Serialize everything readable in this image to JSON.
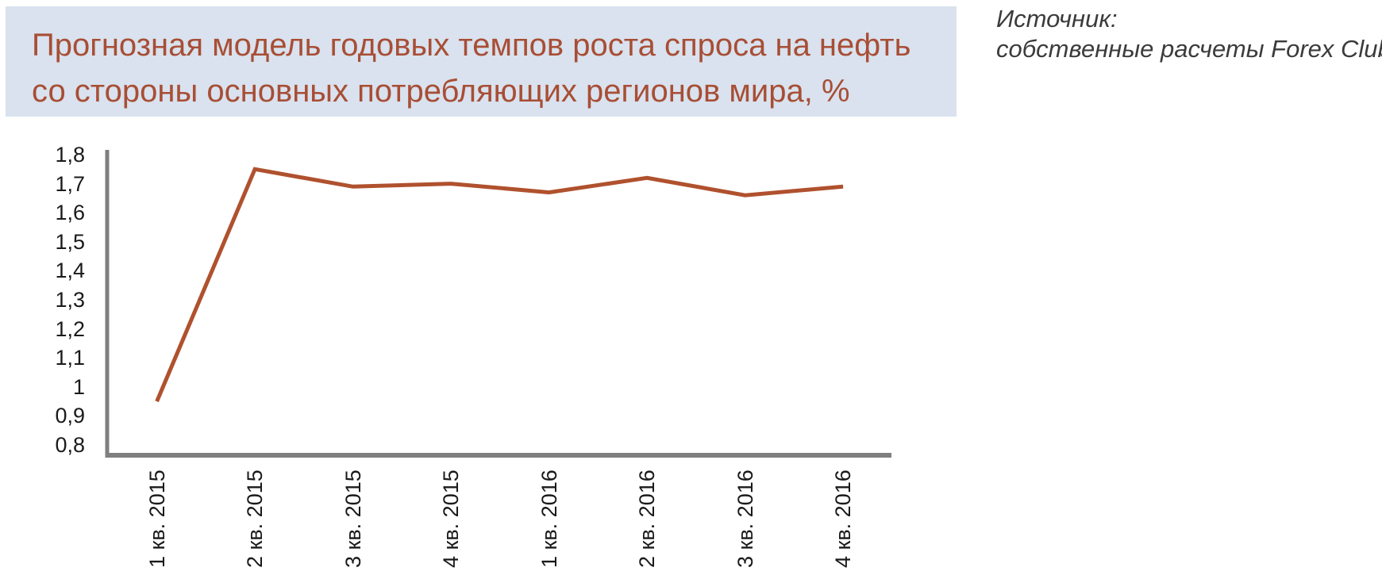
{
  "header": {
    "title_line1": "Прогнозная модель годовых темпов роста спроса на нефть",
    "title_line2": "со стороны основных потребляющих регионов мира, %",
    "banner_bg": "#d9e2ee",
    "title_color": "#a84e35"
  },
  "source": {
    "line1": "Источник:",
    "line2": "собственные расчеты Forex Club"
  },
  "chart_data": {
    "type": "line",
    "title": "Прогнозная модель годовых темпов роста спроса на нефть со стороны основных потребляющих регионов мира, %",
    "categories": [
      "1 кв. 2015",
      "2 кв. 2015",
      "3 кв. 2015",
      "4 кв. 2015",
      "1 кв. 2016",
      "2 кв. 2016",
      "3 кв. 2016",
      "4 кв. 2016"
    ],
    "values": [
      0.95,
      1.75,
      1.69,
      1.7,
      1.67,
      1.72,
      1.66,
      1.69
    ],
    "xlabel": "",
    "ylabel": "",
    "ylim": [
      0.8,
      1.8
    ],
    "ytick_step": 0.1,
    "ytick_labels": [
      "1,8",
      "1,7",
      "1,6",
      "1,5",
      "1,4",
      "1,3",
      "1,2",
      "1,1",
      "1",
      "0,9",
      "0,8"
    ],
    "xtick_rotation_deg": 90,
    "grid": false,
    "legend": "none",
    "line_color": "#b0512e",
    "axis_color": "#7f7f7f"
  }
}
